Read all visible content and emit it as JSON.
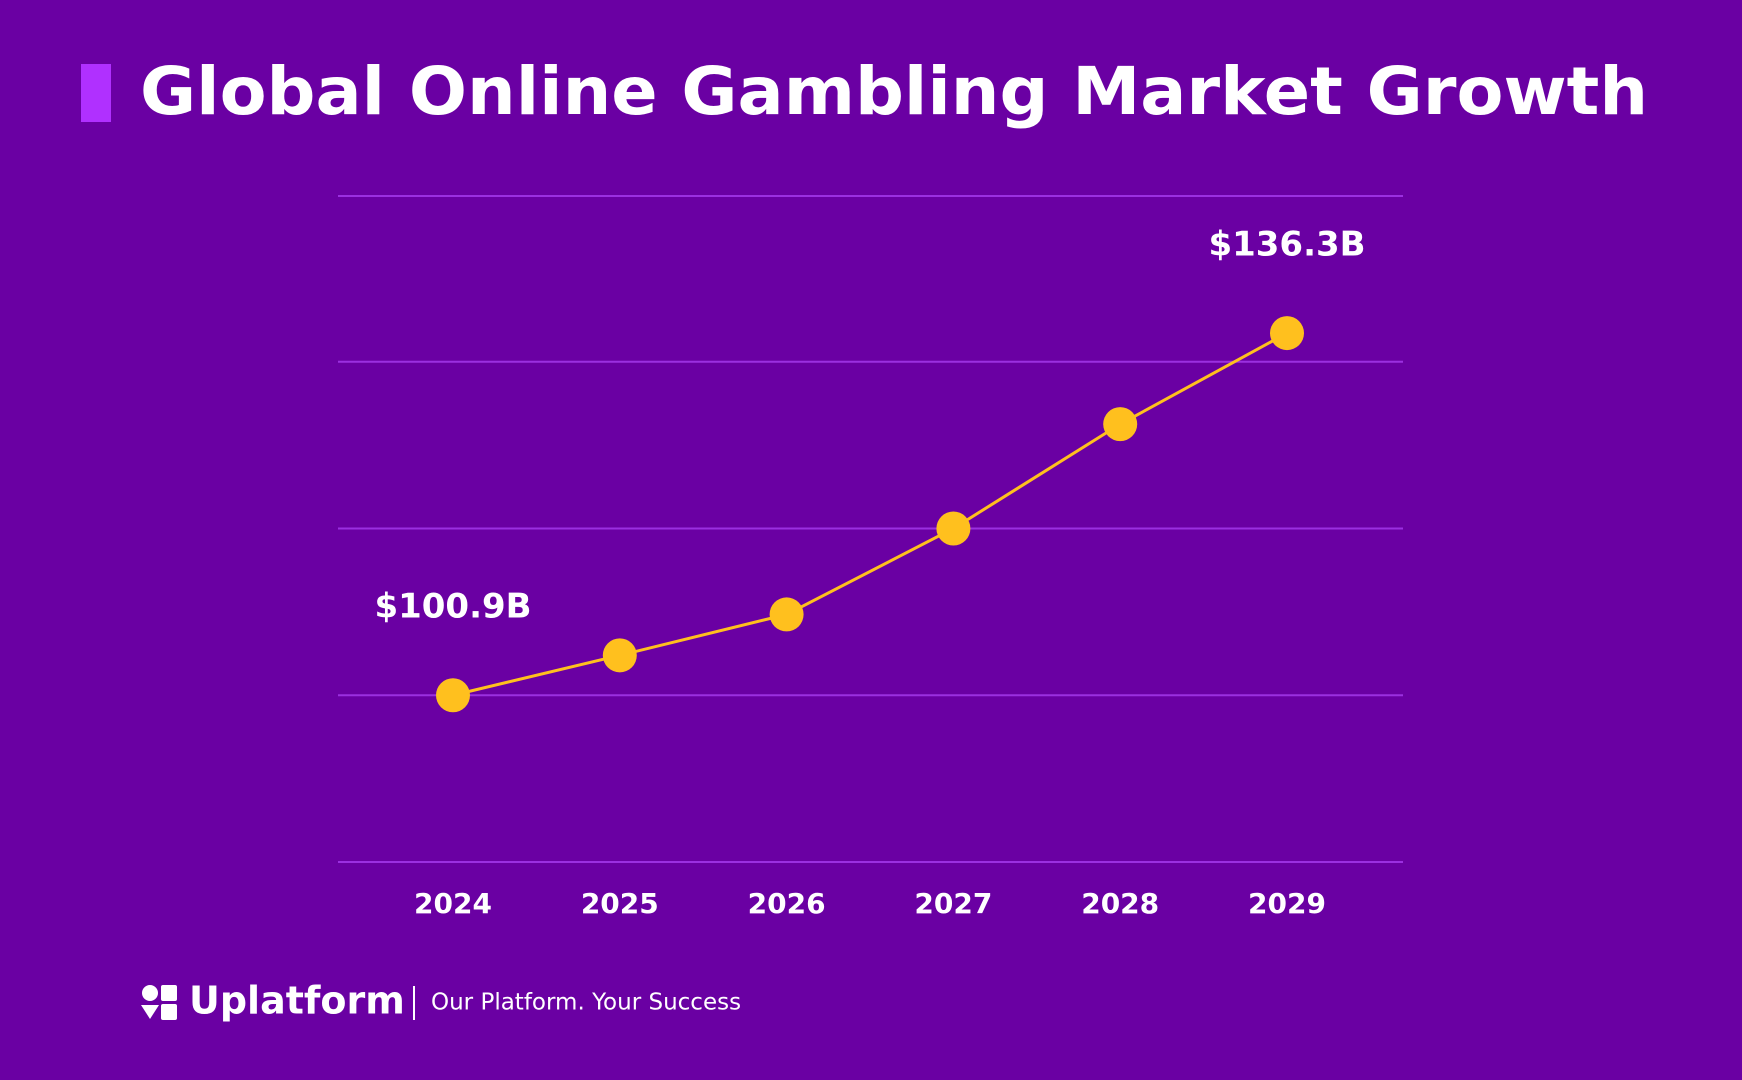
{
  "chart_data": {
    "type": "line",
    "title": "Global Online Gambling Market Growth",
    "categories": [
      "2024",
      "2025",
      "2026",
      "2027",
      "2028",
      "2029"
    ],
    "series": [
      {
        "color": "#ffc01e",
        "values": [
          100.9,
          104.8,
          108.8,
          117.2,
          127.4,
          136.3
        ],
        "value_labels": [
          "$100.9B",
          null,
          null,
          null,
          null,
          "$136.3B"
        ]
      }
    ],
    "ylim": [
      84.6,
      149.7
    ],
    "yticks": [
      84.6,
      100.9,
      117.2,
      133.5,
      149.7
    ],
    "grid": true
  },
  "footer": {
    "brand": "Uplatform",
    "tagline": "Our Platform. Your Success"
  }
}
